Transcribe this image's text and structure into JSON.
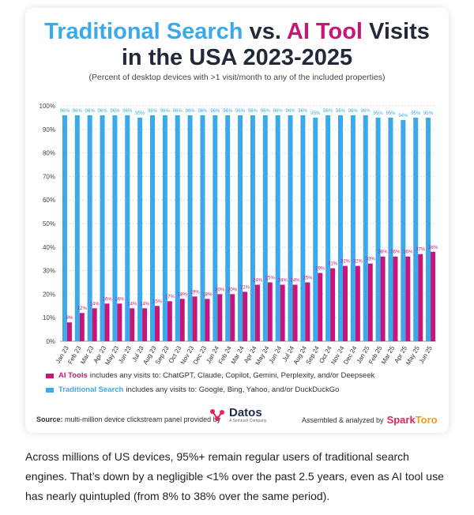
{
  "title": {
    "part1": "Traditional Search",
    "part2": " vs. ",
    "part3": "AI Tool",
    "part4": " Visits",
    "line2": "in the USA 2023-2025"
  },
  "subtitle": "(Percent of desktop devices with >1 visit/month to any of the included properties)",
  "chart_data": {
    "type": "bar",
    "categories": [
      "Jan 23",
      "Feb 23",
      "Mar 23",
      "Apr 23",
      "May 23",
      "Jun 23",
      "Jul 23",
      "Aug 23",
      "Sep 23",
      "Oct 23",
      "Nov 23",
      "Dec 23",
      "Jan 24",
      "Feb 24",
      "Mar 24",
      "Apr 24",
      "May 24",
      "Jun 24",
      "Jul 24",
      "Aug 24",
      "Sep 24",
      "Oct 24",
      "Nov 24",
      "Dec 24",
      "Jan 25",
      "Feb 25",
      "Mar 25",
      "Apr 25",
      "May 25",
      "Jun 25"
    ],
    "series": [
      {
        "color": "#3ba9ea",
        "values": [
          96,
          96,
          96,
          96,
          96,
          96,
          95,
          96,
          96,
          96,
          96,
          96,
          96,
          96,
          96,
          96,
          96,
          96,
          96,
          96,
          95,
          96,
          96,
          96,
          96,
          95,
          95,
          94,
          95,
          95
        ],
        "labels": [
          "96%",
          "96%",
          "96%",
          "96%",
          "96%",
          "96%",
          "95%",
          "96%",
          "96%",
          "96%",
          "96%",
          "96%",
          "96%",
          "96%",
          "96%",
          "96%",
          "96%",
          "96%",
          "96%",
          "96%",
          "95%",
          "96%",
          "96%",
          "96%",
          "96%",
          "95%",
          "95%",
          "94%",
          "95%",
          "95%"
        ]
      },
      {
        "color": "#c7167a",
        "values": [
          8,
          12,
          14,
          16,
          16,
          14,
          14,
          15,
          17,
          18,
          19,
          18,
          20,
          20,
          21,
          24,
          25,
          24,
          24,
          25,
          29,
          31,
          32,
          32,
          33,
          36,
          36,
          36,
          37,
          38
        ],
        "labels": [
          "8%",
          "12%",
          "14%",
          "16%",
          "16%",
          "14%",
          "14%",
          "15%",
          "17%",
          "18%",
          "19%",
          "18%",
          "20%",
          "20%",
          "21%",
          "24%",
          "25%",
          "24%",
          "24%",
          "25%",
          "29%",
          "31%",
          "32%",
          "32%",
          "33%",
          "36%",
          "36%",
          "36%",
          "37%",
          "38%"
        ]
      }
    ],
    "yticks": [
      "0%",
      "10%",
      "20%",
      "30%",
      "40%",
      "50%",
      "60%",
      "70%",
      "80%",
      "90%",
      "100%"
    ],
    "ylim": [
      0,
      100
    ],
    "grid": true
  },
  "legend": {
    "ai_name": "AI Tools",
    "ai_text": "includes any visits to: ChatGPT, Claude, Copilot, Gemini, Perplexity, and/or Deepseek",
    "ai_color": "#c7167a",
    "ts_name": "Traditional Search",
    "ts_text": "includes any visits to: Google, Bing, Yahoo, and/or DuckDuckGo",
    "ts_color": "#3ba9ea"
  },
  "footer": {
    "source_label": "Source:",
    "source_text": " multi-million device clickstream panel provided by",
    "datos_name": "Datos",
    "datos_sub": "A Semrush Company",
    "assembled": "Assembled & analyzed by",
    "sparktoro": "SparkToro"
  },
  "caption": "Across millions of US devices, 95%+ remain regular users of traditional search engines. That’s down by a negligible <1% over the past 2.5 years, even as AI tool use has nearly quintupled (from 8% to 38% over the same period)."
}
